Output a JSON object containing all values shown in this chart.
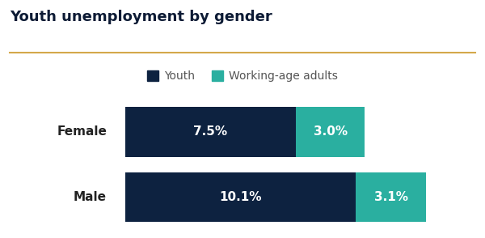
{
  "title": "Youth unemployment by gender",
  "title_fontsize": 13,
  "title_color": "#0d1b35",
  "title_fontweight": "bold",
  "separator_color": "#d4a84b",
  "legend_labels": [
    "Youth",
    "Working-age adults"
  ],
  "categories": [
    "Female",
    "Male"
  ],
  "youth_values": [
    7.5,
    10.1
  ],
  "adult_values": [
    3.0,
    3.1
  ],
  "youth_labels": [
    "7.5%",
    "10.1%"
  ],
  "adult_labels": [
    "3.0%",
    "3.1%"
  ],
  "youth_color": "#0d2240",
  "adult_color": "#2aafa0",
  "background_color": "#ffffff",
  "label_color": "#ffffff",
  "label_fontsize": 11,
  "category_fontsize": 11,
  "category_color": "#222222",
  "legend_color": "#555555",
  "legend_fontsize": 10
}
